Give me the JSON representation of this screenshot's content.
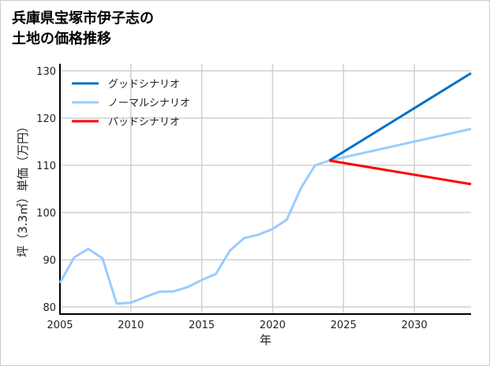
{
  "chart_data": {
    "type": "line",
    "title": "兵庫県宝塚市伊子志の\n土地の価格推移",
    "xlabel": "年",
    "ylabel": "坪（3.3㎡）単価（万円）",
    "xlim": [
      2005,
      2034
    ],
    "ylim": [
      78.5,
      131.5
    ],
    "xticks": [
      2005,
      2010,
      2015,
      2020,
      2025,
      2030
    ],
    "yticks": [
      80,
      90,
      100,
      110,
      120,
      130
    ],
    "grid": true,
    "legend_position": "top-left",
    "series": [
      {
        "name": "グッドシナリオ",
        "color": "#0070c8",
        "x": [
          2024,
          2034
        ],
        "y": [
          111.0,
          129.5
        ]
      },
      {
        "name": "ノーマルシナリオ",
        "color": "#99ccff",
        "x": [
          2005,
          2006,
          2007,
          2008,
          2009,
          2010,
          2011,
          2012,
          2013,
          2014,
          2015,
          2016,
          2017,
          2018,
          2019,
          2020,
          2021,
          2022,
          2023,
          2024,
          2034
        ],
        "y": [
          85.1,
          90.5,
          92.3,
          90.3,
          80.7,
          80.9,
          82.1,
          83.2,
          83.3,
          84.2,
          85.7,
          87.0,
          92.0,
          94.6,
          95.3,
          96.5,
          98.5,
          105.2,
          110.0,
          111.0,
          117.7
        ]
      },
      {
        "name": "バッドシナリオ",
        "color": "#ff0000",
        "x": [
          2024,
          2034
        ],
        "y": [
          111.0,
          106.0
        ]
      }
    ]
  }
}
